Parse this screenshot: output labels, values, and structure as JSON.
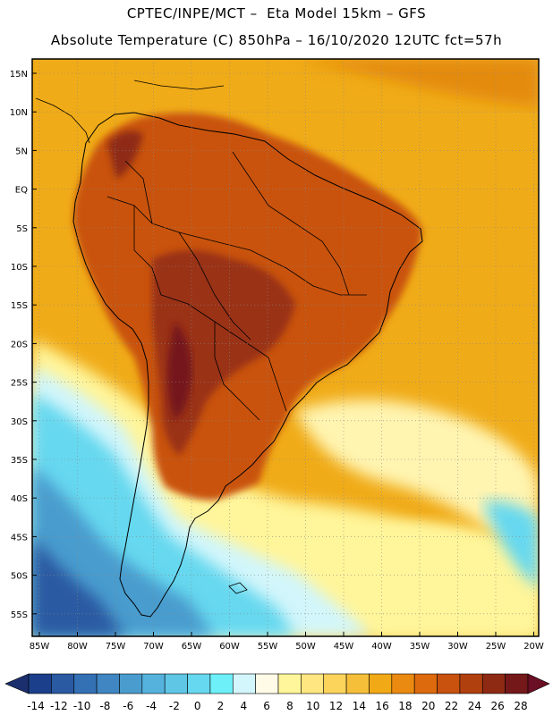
{
  "header": {
    "line1": "CPTEC/INPE/MCT –  Eta Model 15km – GFS",
    "line2": "Absolute Temperature (C) 850hPa – 16/10/2020 12UTC fct=57h"
  },
  "map": {
    "lat_labels": [
      "15N",
      "10N",
      "5N",
      "EQ",
      "5S",
      "10S",
      "15S",
      "20S",
      "25S",
      "30S",
      "35S",
      "40S",
      "45S",
      "50S",
      "55S"
    ],
    "lon_labels": [
      "85W",
      "80W",
      "75W",
      "70W",
      "65W",
      "60W",
      "55W",
      "50W",
      "45W",
      "40W",
      "35W",
      "30W",
      "25W",
      "20W"
    ]
  },
  "colorbar": {
    "labels": [
      "-14",
      "-12",
      "-10",
      "-8",
      "-6",
      "-4",
      "-2",
      "0",
      "2",
      "4",
      "6",
      "8",
      "10",
      "12",
      "14",
      "16",
      "18",
      "20",
      "22",
      "24",
      "26",
      "28"
    ],
    "colors": [
      "#1b3f8a",
      "#2a5aa2",
      "#3470b4",
      "#3f86c2",
      "#4a9cce",
      "#55b2dc",
      "#5fc6e6",
      "#66d8ef",
      "#6df0f8",
      "#d2f6fb",
      "#fffbe6",
      "#fff59a",
      "#ffe680",
      "#fcd45c",
      "#f6bf3a",
      "#f2a916",
      "#ea8a10",
      "#dd6a0c",
      "#c9520f",
      "#b1400f",
      "#8e2a14",
      "#74181a"
    ]
  },
  "fields": {
    "ocean_north": "#f0ab18",
    "land_hot": "#c9520f",
    "land_very_hot": "#9a3213",
    "cool_ocean_south": "#66d8ef",
    "cold_south": "#3f86c2",
    "coastline": "#000000"
  }
}
